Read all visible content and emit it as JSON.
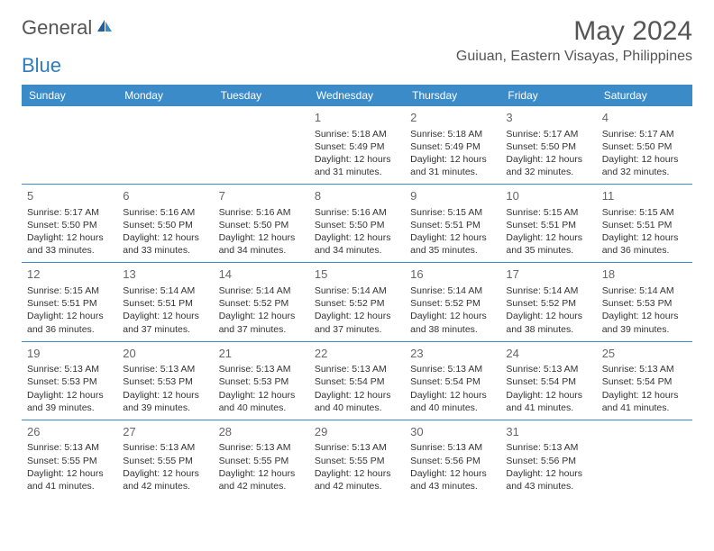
{
  "logo": {
    "text1": "General",
    "text2": "Blue"
  },
  "title": "May 2024",
  "location": "Guiuan, Eastern Visayas, Philippines",
  "colors": {
    "header_bg": "#3b8bc9",
    "header_text": "#ffffff",
    "row_border": "#3b8bc9",
    "logo_gray": "#555555",
    "logo_blue": "#2e7cc0"
  },
  "weekdays": [
    "Sunday",
    "Monday",
    "Tuesday",
    "Wednesday",
    "Thursday",
    "Friday",
    "Saturday"
  ],
  "weeks": [
    [
      {
        "day": "",
        "info": ""
      },
      {
        "day": "",
        "info": ""
      },
      {
        "day": "",
        "info": ""
      },
      {
        "day": "1",
        "info": "Sunrise: 5:18 AM\nSunset: 5:49 PM\nDaylight: 12 hours and 31 minutes."
      },
      {
        "day": "2",
        "info": "Sunrise: 5:18 AM\nSunset: 5:49 PM\nDaylight: 12 hours and 31 minutes."
      },
      {
        "day": "3",
        "info": "Sunrise: 5:17 AM\nSunset: 5:50 PM\nDaylight: 12 hours and 32 minutes."
      },
      {
        "day": "4",
        "info": "Sunrise: 5:17 AM\nSunset: 5:50 PM\nDaylight: 12 hours and 32 minutes."
      }
    ],
    [
      {
        "day": "5",
        "info": "Sunrise: 5:17 AM\nSunset: 5:50 PM\nDaylight: 12 hours and 33 minutes."
      },
      {
        "day": "6",
        "info": "Sunrise: 5:16 AM\nSunset: 5:50 PM\nDaylight: 12 hours and 33 minutes."
      },
      {
        "day": "7",
        "info": "Sunrise: 5:16 AM\nSunset: 5:50 PM\nDaylight: 12 hours and 34 minutes."
      },
      {
        "day": "8",
        "info": "Sunrise: 5:16 AM\nSunset: 5:50 PM\nDaylight: 12 hours and 34 minutes."
      },
      {
        "day": "9",
        "info": "Sunrise: 5:15 AM\nSunset: 5:51 PM\nDaylight: 12 hours and 35 minutes."
      },
      {
        "day": "10",
        "info": "Sunrise: 5:15 AM\nSunset: 5:51 PM\nDaylight: 12 hours and 35 minutes."
      },
      {
        "day": "11",
        "info": "Sunrise: 5:15 AM\nSunset: 5:51 PM\nDaylight: 12 hours and 36 minutes."
      }
    ],
    [
      {
        "day": "12",
        "info": "Sunrise: 5:15 AM\nSunset: 5:51 PM\nDaylight: 12 hours and 36 minutes."
      },
      {
        "day": "13",
        "info": "Sunrise: 5:14 AM\nSunset: 5:51 PM\nDaylight: 12 hours and 37 minutes."
      },
      {
        "day": "14",
        "info": "Sunrise: 5:14 AM\nSunset: 5:52 PM\nDaylight: 12 hours and 37 minutes."
      },
      {
        "day": "15",
        "info": "Sunrise: 5:14 AM\nSunset: 5:52 PM\nDaylight: 12 hours and 37 minutes."
      },
      {
        "day": "16",
        "info": "Sunrise: 5:14 AM\nSunset: 5:52 PM\nDaylight: 12 hours and 38 minutes."
      },
      {
        "day": "17",
        "info": "Sunrise: 5:14 AM\nSunset: 5:52 PM\nDaylight: 12 hours and 38 minutes."
      },
      {
        "day": "18",
        "info": "Sunrise: 5:14 AM\nSunset: 5:53 PM\nDaylight: 12 hours and 39 minutes."
      }
    ],
    [
      {
        "day": "19",
        "info": "Sunrise: 5:13 AM\nSunset: 5:53 PM\nDaylight: 12 hours and 39 minutes."
      },
      {
        "day": "20",
        "info": "Sunrise: 5:13 AM\nSunset: 5:53 PM\nDaylight: 12 hours and 39 minutes."
      },
      {
        "day": "21",
        "info": "Sunrise: 5:13 AM\nSunset: 5:53 PM\nDaylight: 12 hours and 40 minutes."
      },
      {
        "day": "22",
        "info": "Sunrise: 5:13 AM\nSunset: 5:54 PM\nDaylight: 12 hours and 40 minutes."
      },
      {
        "day": "23",
        "info": "Sunrise: 5:13 AM\nSunset: 5:54 PM\nDaylight: 12 hours and 40 minutes."
      },
      {
        "day": "24",
        "info": "Sunrise: 5:13 AM\nSunset: 5:54 PM\nDaylight: 12 hours and 41 minutes."
      },
      {
        "day": "25",
        "info": "Sunrise: 5:13 AM\nSunset: 5:54 PM\nDaylight: 12 hours and 41 minutes."
      }
    ],
    [
      {
        "day": "26",
        "info": "Sunrise: 5:13 AM\nSunset: 5:55 PM\nDaylight: 12 hours and 41 minutes."
      },
      {
        "day": "27",
        "info": "Sunrise: 5:13 AM\nSunset: 5:55 PM\nDaylight: 12 hours and 42 minutes."
      },
      {
        "day": "28",
        "info": "Sunrise: 5:13 AM\nSunset: 5:55 PM\nDaylight: 12 hours and 42 minutes."
      },
      {
        "day": "29",
        "info": "Sunrise: 5:13 AM\nSunset: 5:55 PM\nDaylight: 12 hours and 42 minutes."
      },
      {
        "day": "30",
        "info": "Sunrise: 5:13 AM\nSunset: 5:56 PM\nDaylight: 12 hours and 43 minutes."
      },
      {
        "day": "31",
        "info": "Sunrise: 5:13 AM\nSunset: 5:56 PM\nDaylight: 12 hours and 43 minutes."
      },
      {
        "day": "",
        "info": ""
      }
    ]
  ]
}
